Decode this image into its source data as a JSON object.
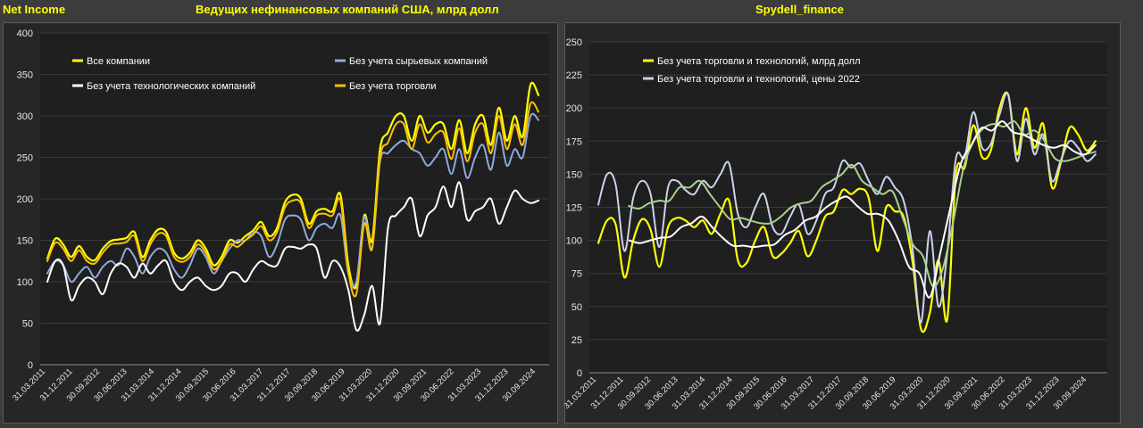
{
  "header": {
    "left_label": "Net Income",
    "left_title": "Ведущих нефинансовых компаний США, млрд долл",
    "right_title": "Spydell_finance"
  },
  "chart_data": [
    {
      "type": "line",
      "title": "Ведущих нефинансовых компаний США, млрд долл",
      "ylim": [
        0,
        400
      ],
      "yticks": [
        "0",
        "50",
        "100",
        "150",
        "200",
        "250",
        "300",
        "350",
        "400"
      ],
      "xlabels": [
        "31.03.2011",
        "31.12.2011",
        "30.09.2012",
        "30.06.2013",
        "31.03.2014",
        "31.12.2014",
        "30.09.2015",
        "30.06.2016",
        "31.03.2017",
        "31.12.2017",
        "30.09.2018",
        "30.06.2019",
        "31.03.2020",
        "31.12.2020",
        "30.09.2021",
        "30.06.2022",
        "31.03.2023",
        "31.12.2023",
        "30.09.2024"
      ],
      "series": [
        {
          "name": "Все компании",
          "color": "#ffff00",
          "width": 2.2,
          "values": [
            128,
            152,
            145,
            130,
            143,
            130,
            126,
            140,
            149,
            151,
            153,
            160,
            130,
            150,
            163,
            160,
            135,
            128,
            135,
            150,
            140,
            120,
            130,
            150,
            147,
            155,
            162,
            172,
            155,
            165,
            196,
            205,
            200,
            170,
            185,
            188,
            185,
            205,
            120,
            95,
            180,
            150,
            260,
            280,
            300,
            300,
            270,
            300,
            280,
            290,
            290,
            260,
            295,
            255,
            290,
            300,
            265,
            310,
            270,
            300,
            275,
            338,
            325
          ]
        },
        {
          "name": "Без учета сырьевых компаний",
          "color": "#8eaadb",
          "width": 2,
          "values": [
            110,
            125,
            120,
            100,
            110,
            118,
            105,
            118,
            125,
            120,
            140,
            130,
            110,
            130,
            140,
            135,
            115,
            105,
            120,
            140,
            130,
            110,
            125,
            140,
            150,
            150,
            160,
            155,
            130,
            145,
            175,
            180,
            175,
            150,
            165,
            170,
            165,
            180,
            110,
            100,
            178,
            140,
            245,
            255,
            265,
            270,
            260,
            255,
            240,
            250,
            260,
            230,
            260,
            225,
            250,
            265,
            235,
            280,
            240,
            260,
            250,
            300,
            295
          ]
        },
        {
          "name": "Без учета технологических компаний",
          "color": "#ffffff",
          "width": 2,
          "values": [
            100,
            125,
            120,
            78,
            95,
            105,
            100,
            85,
            110,
            122,
            118,
            105,
            122,
            110,
            120,
            125,
            100,
            90,
            100,
            105,
            95,
            90,
            95,
            110,
            110,
            100,
            115,
            125,
            120,
            120,
            140,
            142,
            140,
            145,
            140,
            105,
            125,
            118,
            90,
            42,
            60,
            95,
            50,
            165,
            180,
            190,
            200,
            155,
            180,
            190,
            215,
            190,
            220,
            175,
            185,
            190,
            200,
            170,
            190,
            210,
            200,
            195,
            198
          ]
        },
        {
          "name": "Без учета торговли",
          "color": "#ffc000",
          "width": 2,
          "values": [
            125,
            147,
            140,
            125,
            138,
            125,
            122,
            135,
            145,
            146,
            148,
            155,
            125,
            145,
            158,
            155,
            130,
            124,
            130,
            145,
            135,
            115,
            125,
            145,
            142,
            150,
            157,
            167,
            150,
            160,
            190,
            198,
            195,
            165,
            180,
            182,
            180,
            198,
            112,
            85,
            170,
            140,
            250,
            268,
            290,
            290,
            260,
            290,
            268,
            278,
            280,
            248,
            285,
            245,
            280,
            290,
            255,
            300,
            260,
            290,
            265,
            315,
            305
          ]
        }
      ],
      "legend": [
        "Все компании",
        "Без учета сырьевых компаний",
        "Без учета технологических компаний",
        "Без учета торговли"
      ]
    },
    {
      "type": "line",
      "title": "Spydell_finance",
      "ylim": [
        0,
        250
      ],
      "yticks": [
        "0",
        "25",
        "50",
        "75",
        "100",
        "125",
        "150",
        "175",
        "200",
        "225",
        "250"
      ],
      "xlabels": [
        "31.03.2011",
        "31.12.2011",
        "30.09.2012",
        "30.06.2013",
        "31.03.2014",
        "31.12.2014",
        "30.09.2015",
        "30.06.2016",
        "31.03.2017",
        "31.12.2017",
        "30.09.2018",
        "30.06.2019",
        "31.03.2020",
        "31.12.2020",
        "30.09.2021",
        "30.06.2022",
        "31.03.2023",
        "31.12.2023",
        "30.09.2024"
      ],
      "series": [
        {
          "name": "Без учета торговли и технологий, млрд долл",
          "color": "#ffff00",
          "width": 2.2,
          "values": [
            98,
            115,
            112,
            72,
            100,
            116,
            108,
            80,
            110,
            117,
            115,
            110,
            115,
            105,
            120,
            130,
            85,
            83,
            100,
            110,
            88,
            90,
            98,
            107,
            88,
            100,
            118,
            122,
            138,
            135,
            139,
            132,
            92,
            125,
            122,
            118,
            85,
            33,
            45,
            85,
            40,
            150,
            155,
            187,
            163,
            168,
            200,
            210,
            165,
            200,
            170,
            188,
            140,
            158,
            185,
            180,
            168,
            175
          ]
        },
        {
          "name": "Без учета торговли и технологий, цены 2022",
          "color": "#c9d3ea",
          "width": 2,
          "values": [
            127,
            150,
            142,
            92,
            132,
            145,
            135,
            95,
            140,
            145,
            138,
            135,
            145,
            140,
            150,
            158,
            120,
            110,
            125,
            135,
            110,
            105,
            118,
            127,
            105,
            115,
            135,
            140,
            160,
            155,
            158,
            145,
            135,
            148,
            140,
            130,
            95,
            38,
            107,
            50,
            90,
            162,
            163,
            197,
            170,
            173,
            195,
            210,
            160,
            192,
            165,
            180,
            145,
            160,
            175,
            170,
            160,
            165
          ]
        },
        {
          "name": "",
          "color": "#a9d18e",
          "width": 2,
          "values": [
            null,
            128,
            null,
            126,
            124,
            128,
            130,
            130,
            140,
            140,
            145,
            135,
            125,
            116,
            117,
            115,
            113,
            113,
            118,
            125,
            128,
            130,
            140,
            145,
            150,
            157,
            145,
            140,
            135,
            137,
            117,
            97,
            88,
            65,
            80,
            115,
            155,
            175,
            185,
            188,
            186,
            190,
            180,
            183,
            175,
            162,
            160,
            162,
            165,
            167
          ]
        },
        {
          "name": "",
          "color": "#ffffff",
          "width": 2,
          "values": [
            null,
            100,
            null,
            100,
            98,
            100,
            102,
            103,
            110,
            113,
            118,
            110,
            102,
            96,
            96,
            95,
            96,
            97,
            104,
            108,
            115,
            118,
            125,
            130,
            133,
            126,
            120,
            120,
            115,
            100,
            80,
            75,
            57,
            90,
            125,
            158,
            172,
            185,
            183,
            190,
            182,
            180,
            176,
            172,
            170,
            172,
            167,
            165,
            172
          ]
        }
      ],
      "legend": [
        "Без учета торговли и технологий, млрд долл",
        "Без учета торговли и технологий, цены 2022"
      ]
    }
  ]
}
